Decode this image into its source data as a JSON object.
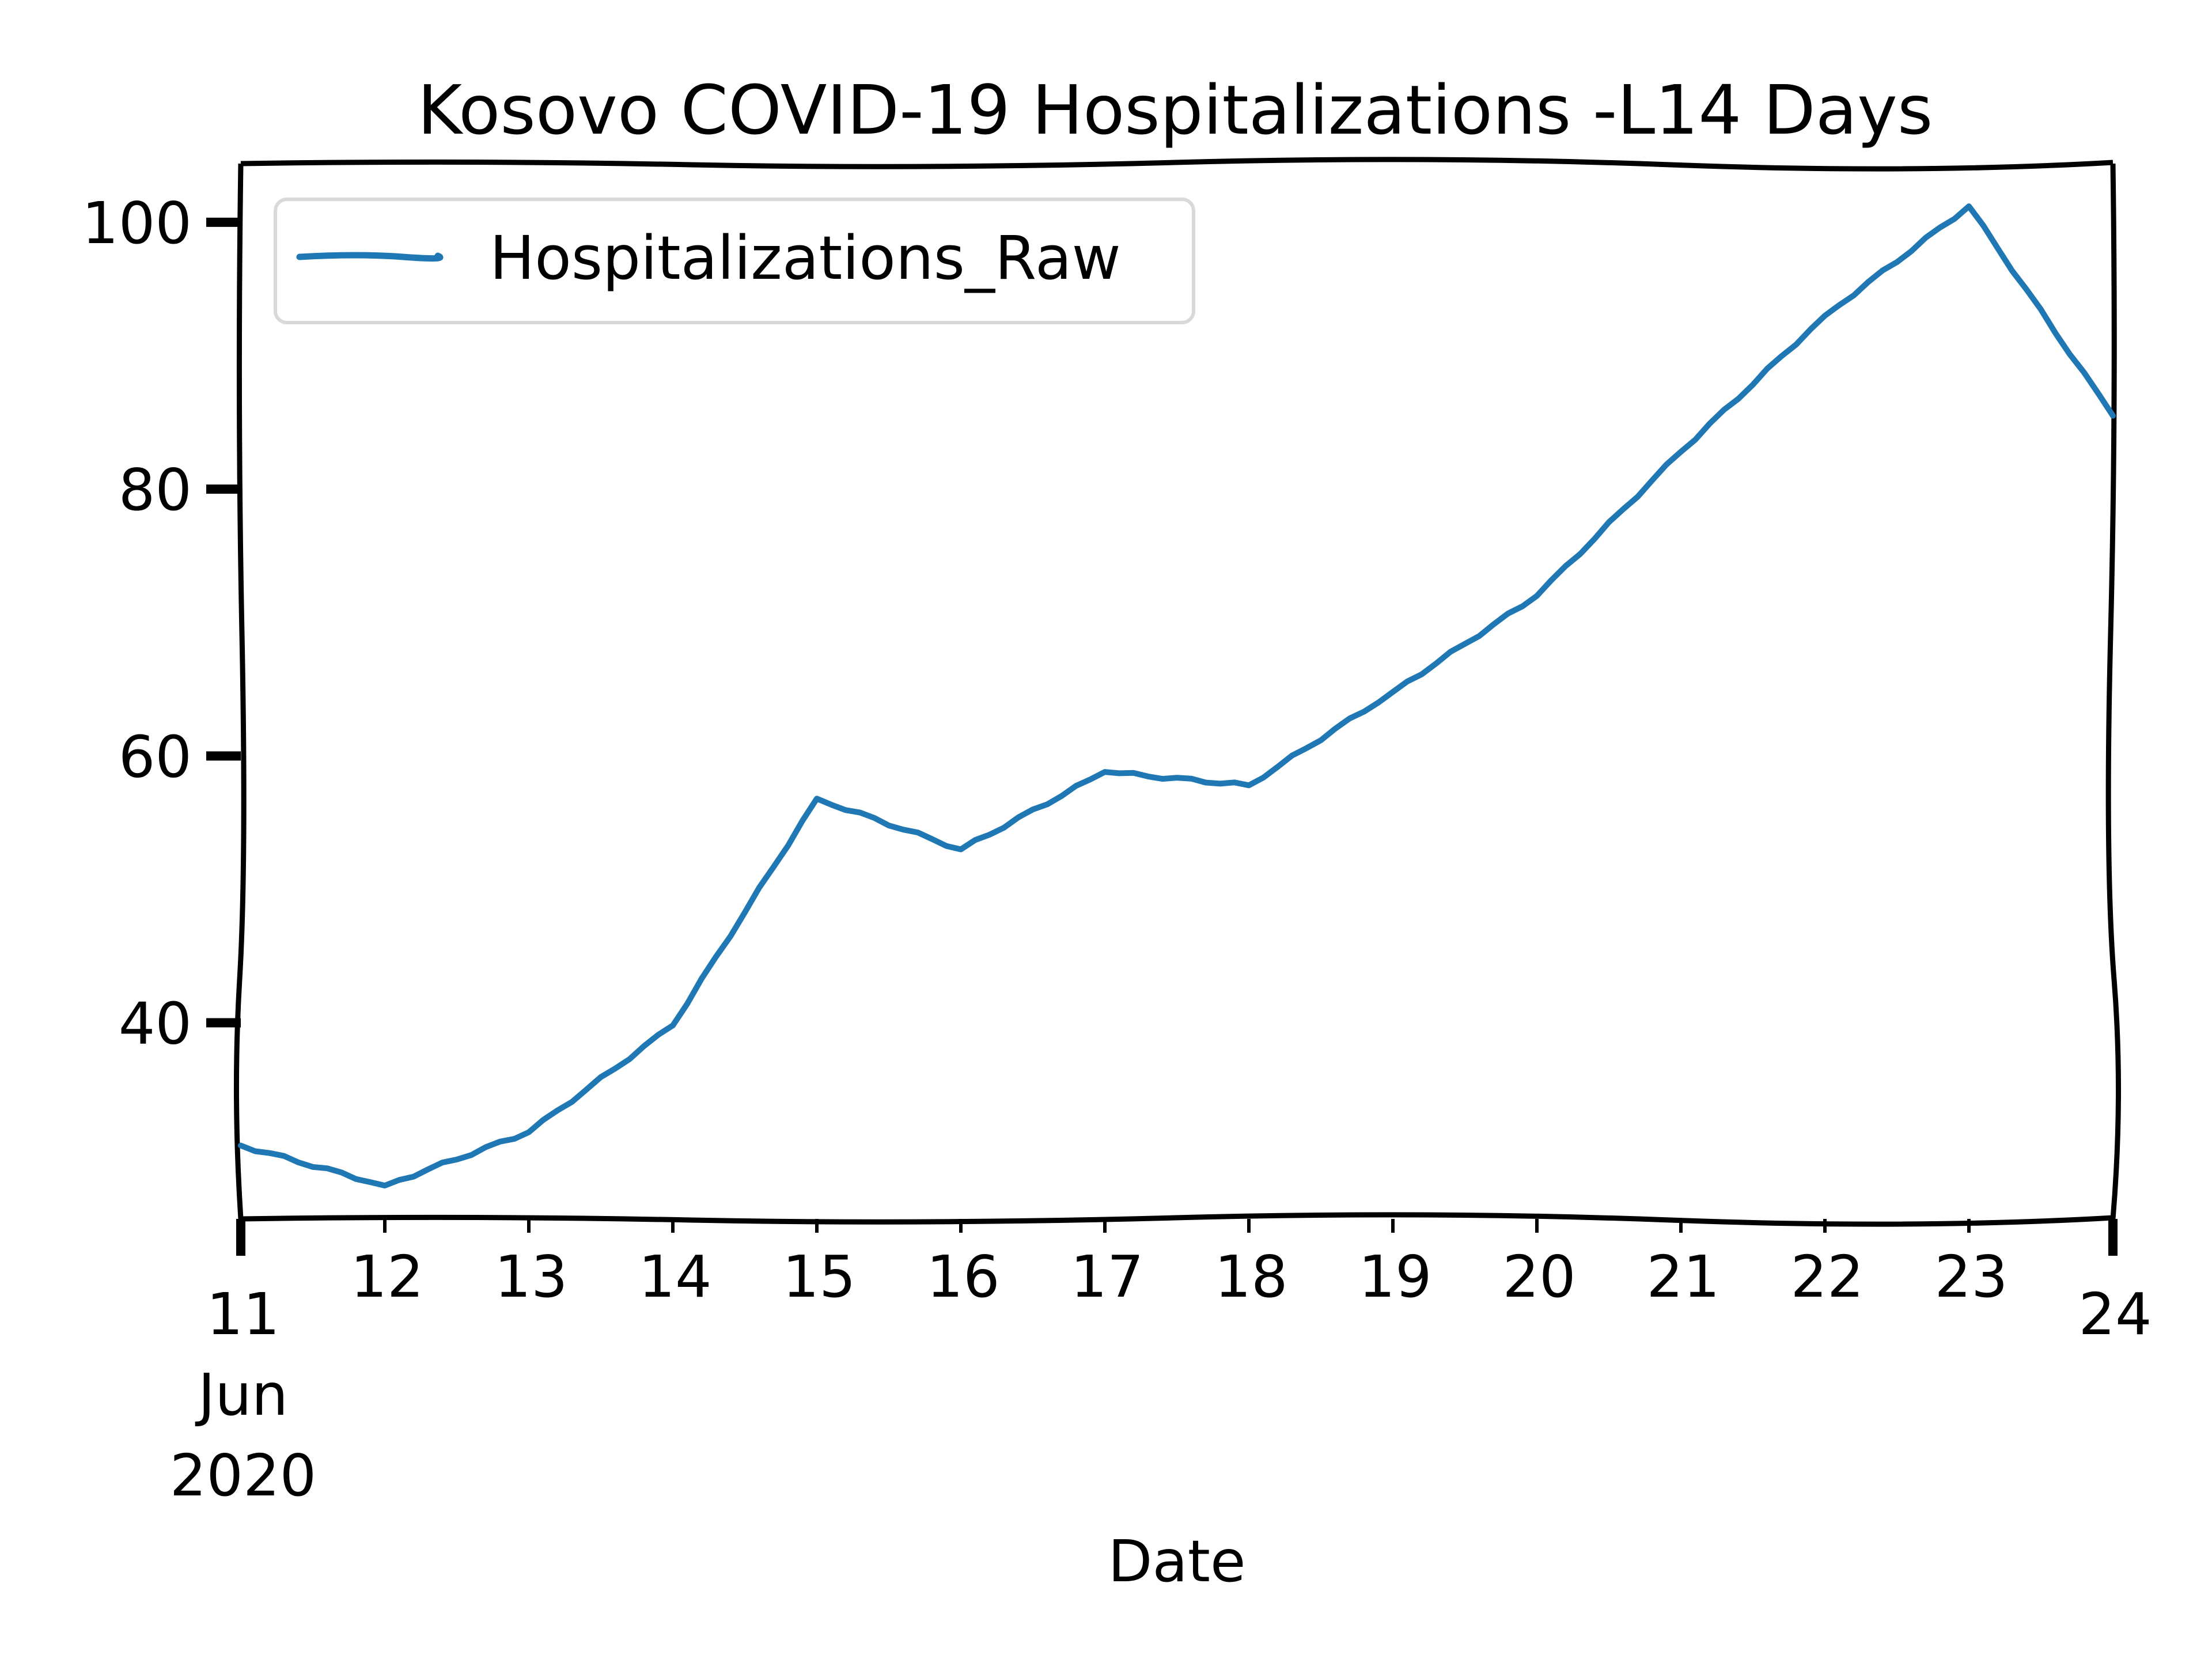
{
  "chart_data": {
    "type": "line",
    "title": "Kosovo COVID-19 Hospitalizations -L14 Days",
    "xlabel": "Date",
    "ylabel": "",
    "x_tick_labels": [
      {
        "day": 11,
        "lines": [
          "11",
          "Jun",
          "2020"
        ],
        "major": true
      },
      {
        "day": 12,
        "lines": [
          "12"
        ],
        "major": false
      },
      {
        "day": 13,
        "lines": [
          "13"
        ],
        "major": false
      },
      {
        "day": 14,
        "lines": [
          "14"
        ],
        "major": false
      },
      {
        "day": 15,
        "lines": [
          "15"
        ],
        "major": false
      },
      {
        "day": 16,
        "lines": [
          "16"
        ],
        "major": false
      },
      {
        "day": 17,
        "lines": [
          "17"
        ],
        "major": false
      },
      {
        "day": 18,
        "lines": [
          "18"
        ],
        "major": false
      },
      {
        "day": 19,
        "lines": [
          "19"
        ],
        "major": false
      },
      {
        "day": 20,
        "lines": [
          "20"
        ],
        "major": false
      },
      {
        "day": 21,
        "lines": [
          "21"
        ],
        "major": false
      },
      {
        "day": 22,
        "lines": [
          "22"
        ],
        "major": false
      },
      {
        "day": 23,
        "lines": [
          "23"
        ],
        "major": false
      },
      {
        "day": 24,
        "lines": [
          "24"
        ],
        "major": true
      }
    ],
    "y_ticks": [
      40,
      60,
      80,
      100
    ],
    "xlim": [
      "2020-06-11",
      "2020-06-24"
    ],
    "ylim": [
      25.3,
      104.4
    ],
    "grid": false,
    "legend": {
      "placement": "upper-left"
    },
    "series": [
      {
        "name": "Hospitalizations_Raw",
        "color": "#1f77b4",
        "x": [
          "2020-06-11",
          "2020-06-12",
          "2020-06-13",
          "2020-06-14",
          "2020-06-15",
          "2020-06-16",
          "2020-06-17",
          "2020-06-18",
          "2020-06-19",
          "2020-06-20",
          "2020-06-21",
          "2020-06-22",
          "2020-06-23",
          "2020-06-24"
        ],
        "values": [
          30.8,
          27.8,
          31.8,
          39.8,
          56.8,
          53.0,
          58.8,
          57.8,
          64.8,
          72.0,
          82.8,
          93.0,
          101.2,
          85.5
        ]
      }
    ]
  }
}
